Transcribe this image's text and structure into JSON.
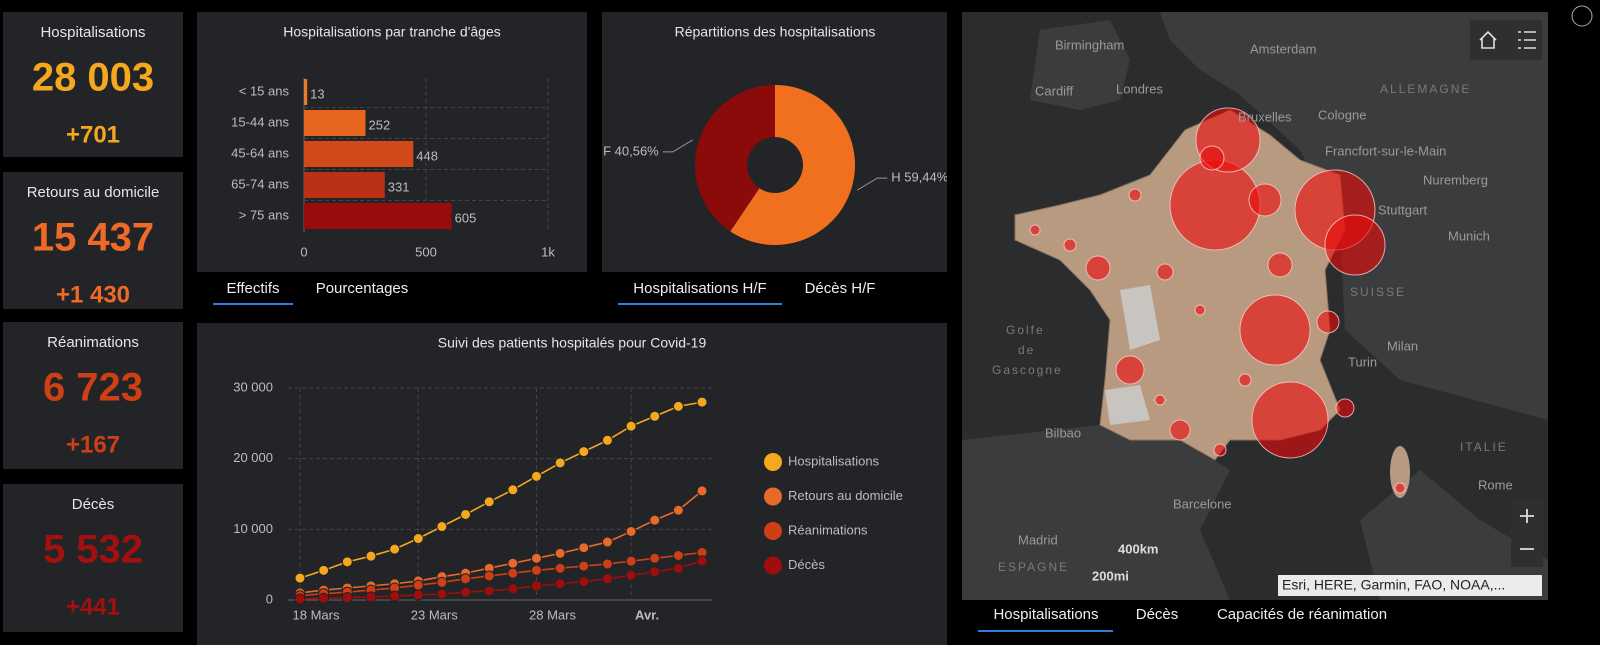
{
  "cards": [
    {
      "label": "Hospitalisations",
      "value": "28 003",
      "delta": "+701",
      "color": "#f5a81d"
    },
    {
      "label": "Retours au domicile",
      "value": "15 437",
      "delta": "+1 430",
      "color": "#ee6a26"
    },
    {
      "label": "Réanimations",
      "value": "6 723",
      "delta": "+167",
      "color": "#cf3f15"
    },
    {
      "label": "Décès",
      "value": "5 532",
      "delta": "+441",
      "color": "#a3100f"
    }
  ],
  "chart_data": [
    {
      "type": "bar",
      "orientation": "horizontal",
      "title": "Hospitalisations par tranche d'âges",
      "categories": [
        "< 15 ans",
        "15-44 ans",
        "45-64 ans",
        "65-74 ans",
        "> 75 ans"
      ],
      "values": [
        13,
        252,
        448,
        331,
        605
      ],
      "colors": [
        "#ec7a2e",
        "#e8651f",
        "#d34a1a",
        "#b93215",
        "#990c0c"
      ],
      "xlim": [
        0,
        1000
      ],
      "xticks": [
        0,
        500,
        {
          "value": 1000,
          "label": "1k"
        }
      ],
      "grid": true
    },
    {
      "type": "pie",
      "title": "Répartitions des hospitalisations",
      "values": [
        59.44,
        40.56
      ],
      "value_labels": [
        "H 59,44%",
        "F 40,56%"
      ],
      "colors": [
        "#f07020",
        "#8b0a0a"
      ]
    },
    {
      "type": "line",
      "title": "Suivi des patients hospitalés pour Covid-19",
      "categories": [
        "18 Mars",
        null,
        null,
        null,
        null,
        "23 Mars",
        null,
        null,
        null,
        null,
        "28 Mars",
        null,
        null,
        null,
        "Avr.",
        null,
        null,
        null
      ],
      "ylim": [
        0,
        30000
      ],
      "yticks": [
        0,
        {
          "value": 10000,
          "label": "10 000"
        },
        {
          "value": 20000,
          "label": "20 000"
        },
        {
          "value": 30000,
          "label": "30 000"
        }
      ],
      "grid": true,
      "legend": "right",
      "series": [
        {
          "name": "Hospitalisations",
          "color": "#f5a81d",
          "values": [
            3100,
            4200,
            5400,
            6200,
            7200,
            8700,
            10400,
            12100,
            13900,
            15600,
            17500,
            19400,
            21000,
            22600,
            24600,
            26000,
            27400,
            28003
          ]
        },
        {
          "name": "Retours au domicile",
          "color": "#e86a2a",
          "values": [
            1000,
            1400,
            1700,
            2000,
            2300,
            2700,
            3300,
            3800,
            4500,
            5200,
            5900,
            6600,
            7400,
            8200,
            9700,
            11300,
            12700,
            15437
          ]
        },
        {
          "name": "Réanimations",
          "color": "#cf3f15",
          "values": [
            600,
            900,
            1100,
            1400,
            1700,
            2100,
            2500,
            3000,
            3400,
            3800,
            4200,
            4500,
            4800,
            5100,
            5500,
            5900,
            6300,
            6723
          ]
        },
        {
          "name": "Décès",
          "color": "#a00d0d",
          "values": [
            150,
            250,
            350,
            450,
            550,
            700,
            850,
            1100,
            1300,
            1600,
            2000,
            2300,
            2600,
            3000,
            3500,
            4000,
            4500,
            5532
          ]
        }
      ]
    }
  ],
  "tabs": {
    "ages": [
      "Effectifs",
      "Pourcentages"
    ],
    "sex": [
      "Hospitalisations H/F",
      "Décès H/F"
    ],
    "map": [
      "Hospitalisations",
      "Décès",
      "Capacités de réanimation"
    ]
  },
  "map": {
    "labels": [
      "Birmingham",
      "Amsterdam",
      "Cardiff",
      "Londres",
      "ALLEMAGNE",
      "Cologne",
      "Francfort-sur-le-Main",
      "Nuremberg",
      "Stuttgart",
      "Munich",
      "Golfe",
      "de",
      "Gascogne",
      "Milan",
      "Turin",
      "Bilbao",
      "Barcelone",
      "Madrid",
      "ESPAGNE",
      "Rome",
      "ITALIE",
      "SUISSE",
      "Bruxelles"
    ],
    "scale": [
      "400km",
      "200mi"
    ],
    "attribution": "Esri, HERE, Garmin, FAO, NOAA,..."
  }
}
